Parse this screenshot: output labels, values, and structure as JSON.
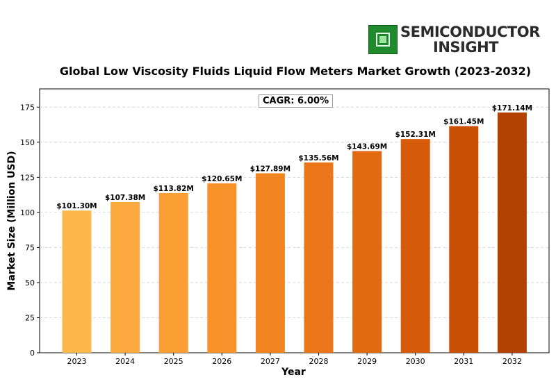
{
  "logo": {
    "line1": "SEMICONDUCTOR",
    "line2": "INSIGHT",
    "color": "#1f8a2e"
  },
  "chart_data": {
    "type": "bar",
    "title": "Global Low Viscosity Fluids Liquid Flow Meters Market Growth (2023-2032)",
    "xlabel": "Year",
    "ylabel": "Market Size (Million USD)",
    "categories": [
      "2023",
      "2024",
      "2025",
      "2026",
      "2027",
      "2028",
      "2029",
      "2030",
      "2031",
      "2032"
    ],
    "values": [
      101.3,
      107.38,
      113.82,
      120.65,
      127.89,
      135.56,
      143.69,
      152.31,
      161.45,
      171.14
    ],
    "data_labels": [
      "$101.30M",
      "$107.38M",
      "$113.82M",
      "$120.65M",
      "$127.89M",
      "$135.56M",
      "$143.69M",
      "$152.31M",
      "$161.45M",
      "$171.14M"
    ],
    "colors": [
      "#fdb74a",
      "#fcaa3f",
      "#fb9f35",
      "#f8922b",
      "#f28522",
      "#ea7619",
      "#e26a12",
      "#d65c0b",
      "#c94e06",
      "#b44104"
    ],
    "yticks": [
      0,
      25,
      50,
      75,
      100,
      125,
      150,
      175
    ],
    "ylim": [
      0,
      188
    ],
    "grid": "y-dashed",
    "annotation": "CAGR: 6.00%"
  }
}
